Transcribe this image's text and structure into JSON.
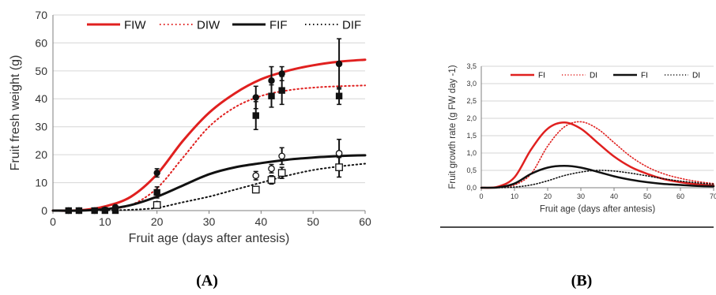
{
  "colors": {
    "red": "#e0201f",
    "black": "#111111",
    "grid": "#d6d6d6",
    "axis": "#7f7f7f"
  },
  "panels": {
    "a_label": "(A)",
    "b_label": "(B)"
  },
  "chart_data": [
    {
      "type": "line",
      "xlabel": "Fruit age (days after antesis)",
      "ylabel": "Fruit fresh weight (g)",
      "xlim": [
        0,
        60
      ],
      "ylim": [
        0,
        70
      ],
      "xticks": [
        "0",
        "10",
        "20",
        "30",
        "40",
        "50",
        "60"
      ],
      "yticks": [
        "0",
        "10",
        "20",
        "30",
        "40",
        "50",
        "60",
        "70"
      ],
      "grid": true,
      "legend_position": "top",
      "series": [
        {
          "name": "FIW",
          "color": "#e0201f",
          "style": "solid",
          "x": [
            0,
            5,
            10,
            15,
            20,
            25,
            30,
            35,
            40,
            45,
            50,
            55,
            60
          ],
          "y": [
            0,
            0.1,
            1.5,
            5,
            13,
            25,
            35,
            42,
            47,
            50,
            52,
            53.3,
            54
          ]
        },
        {
          "name": "DIW",
          "color": "#e0201f",
          "style": "dotted",
          "x": [
            0,
            5,
            10,
            15,
            20,
            25,
            30,
            35,
            40,
            45,
            50,
            55,
            60
          ],
          "y": [
            0,
            0,
            0.5,
            2,
            8,
            19,
            30,
            37,
            41,
            43,
            44,
            44.5,
            44.8
          ]
        },
        {
          "name": "FIF",
          "color": "#111111",
          "style": "solid",
          "x": [
            0,
            5,
            10,
            15,
            20,
            25,
            30,
            35,
            40,
            45,
            50,
            55,
            60
          ],
          "y": [
            0,
            0,
            0.5,
            2,
            5,
            9,
            13,
            15.5,
            17,
            18.2,
            19,
            19.5,
            19.8
          ]
        },
        {
          "name": "DIF",
          "color": "#111111",
          "style": "dotted",
          "x": [
            0,
            5,
            10,
            15,
            20,
            25,
            30,
            35,
            40,
            45,
            50,
            55,
            60
          ],
          "y": [
            0,
            0,
            0.1,
            0.3,
            1,
            3,
            5,
            7.5,
            10,
            12.5,
            14.5,
            15.8,
            16.8
          ]
        }
      ],
      "observations": [
        {
          "marker": "filled-circle",
          "x": 3,
          "y": 0
        },
        {
          "marker": "filled-circle",
          "x": 5,
          "y": 0
        },
        {
          "marker": "filled-circle",
          "x": 8,
          "y": 0
        },
        {
          "marker": "filled-circle",
          "x": 10,
          "y": 0.3
        },
        {
          "marker": "filled-circle",
          "x": 12,
          "y": 1.2
        },
        {
          "marker": "filled-circle",
          "x": 20,
          "y": 13.5,
          "err": 1.5
        },
        {
          "marker": "filled-circle",
          "x": 39,
          "y": 40.5,
          "err": 4
        },
        {
          "marker": "filled-circle",
          "x": 42,
          "y": 46.5,
          "err": 5
        },
        {
          "marker": "filled-circle",
          "x": 44,
          "y": 49,
          "err": 2.5
        },
        {
          "marker": "filled-circle",
          "x": 55,
          "y": 52.5,
          "err": 9
        },
        {
          "marker": "filled-square",
          "x": 3,
          "y": 0
        },
        {
          "marker": "filled-square",
          "x": 5,
          "y": 0
        },
        {
          "marker": "filled-square",
          "x": 8,
          "y": 0
        },
        {
          "marker": "filled-square",
          "x": 10,
          "y": 0
        },
        {
          "marker": "filled-square",
          "x": 12,
          "y": 0
        },
        {
          "marker": "filled-square",
          "x": 20,
          "y": 6.5,
          "err": 2
        },
        {
          "marker": "filled-square",
          "x": 39,
          "y": 34,
          "err": 5
        },
        {
          "marker": "filled-square",
          "x": 42,
          "y": 41,
          "err": 4
        },
        {
          "marker": "filled-square",
          "x": 44,
          "y": 43,
          "err": 5
        },
        {
          "marker": "filled-square",
          "x": 55,
          "y": 41,
          "err": 3
        },
        {
          "marker": "open-circle",
          "x": 20,
          "y": 2.3
        },
        {
          "marker": "open-circle",
          "x": 39,
          "y": 12.5,
          "err": 1.5
        },
        {
          "marker": "open-circle",
          "x": 42,
          "y": 15,
          "err": 1.5
        },
        {
          "marker": "open-circle",
          "x": 44,
          "y": 19.5,
          "err": 3
        },
        {
          "marker": "open-circle",
          "x": 55,
          "y": 20.5,
          "err": 5
        },
        {
          "marker": "open-square",
          "x": 20,
          "y": 2,
          "err": 0.8
        },
        {
          "marker": "open-square",
          "x": 39,
          "y": 7.5,
          "err": 1
        },
        {
          "marker": "open-square",
          "x": 42,
          "y": 11,
          "err": 1.5
        },
        {
          "marker": "open-square",
          "x": 44,
          "y": 13.5,
          "err": 2
        },
        {
          "marker": "open-square",
          "x": 55,
          "y": 15.5,
          "err": 3.5
        }
      ]
    },
    {
      "type": "line",
      "xlabel": "Fruit age (days after antesis)",
      "ylabel": "Fruit growth rate (g FW day -1)",
      "xlim": [
        0,
        70
      ],
      "ylim": [
        0,
        3.5
      ],
      "xticks": [
        "0",
        "10",
        "20",
        "30",
        "40",
        "50",
        "60",
        "70"
      ],
      "yticks": [
        "0,0",
        "0,5",
        "1,0",
        "1,5",
        "2,0",
        "2,5",
        "3,0",
        "3,5"
      ],
      "grid": true,
      "legend_position": "top",
      "series": [
        {
          "name": "FI",
          "color": "#e0201f",
          "style": "solid",
          "x": [
            0,
            5,
            10,
            15,
            20,
            25,
            30,
            35,
            40,
            45,
            50,
            55,
            60,
            65,
            70
          ],
          "y": [
            0,
            0.03,
            0.3,
            1.1,
            1.7,
            1.88,
            1.7,
            1.3,
            0.9,
            0.6,
            0.4,
            0.25,
            0.16,
            0.1,
            0.06
          ]
        },
        {
          "name": "DI",
          "color": "#e0201f",
          "style": "dotted",
          "x": [
            0,
            5,
            10,
            15,
            20,
            25,
            30,
            35,
            40,
            45,
            50,
            55,
            60,
            65,
            70
          ],
          "y": [
            0,
            0.01,
            0.08,
            0.4,
            1.2,
            1.75,
            1.9,
            1.7,
            1.3,
            0.9,
            0.6,
            0.4,
            0.27,
            0.18,
            0.12
          ]
        },
        {
          "name": "FI",
          "color": "#111111",
          "style": "solid",
          "x": [
            0,
            5,
            10,
            15,
            20,
            25,
            30,
            35,
            40,
            45,
            50,
            55,
            60,
            65,
            70
          ],
          "y": [
            0,
            0.01,
            0.12,
            0.4,
            0.58,
            0.63,
            0.58,
            0.46,
            0.33,
            0.23,
            0.16,
            0.11,
            0.08,
            0.05,
            0.04
          ]
        },
        {
          "name": "DI",
          "color": "#111111",
          "style": "dotted",
          "x": [
            0,
            5,
            10,
            15,
            20,
            25,
            30,
            35,
            40,
            45,
            50,
            55,
            60,
            65,
            70
          ],
          "y": [
            0,
            0,
            0.02,
            0.08,
            0.2,
            0.35,
            0.45,
            0.5,
            0.48,
            0.42,
            0.34,
            0.26,
            0.19,
            0.14,
            0.1
          ]
        }
      ]
    }
  ]
}
